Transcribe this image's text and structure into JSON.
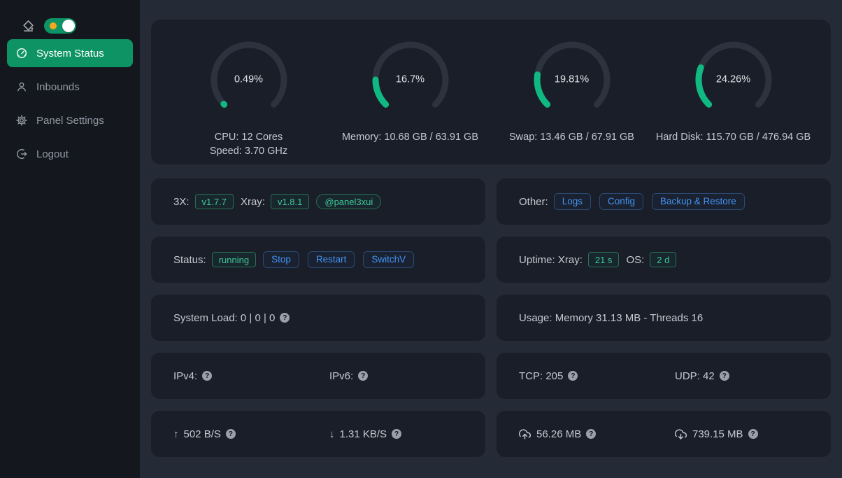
{
  "colors": {
    "page_bg": "#252a37",
    "card_bg": "#191e28",
    "sidebar_bg": "#14171e",
    "accent_green": "#10b981",
    "accent_green_strong": "#0e9464",
    "accent_blue": "#4493f2",
    "gauge_track": "#2c323e",
    "tag_green_text": "#3fc89a",
    "tag_green_border": "#2a6e54",
    "btn_blue_border": "#2a4a73",
    "sun_color": "#f6a821"
  },
  "icons": {
    "help": "?",
    "arrow_up": "↑",
    "arrow_down": "↓"
  },
  "sidebar": {
    "theme_toggle_on": true,
    "items": [
      {
        "label": "System Status",
        "icon": "dashboard-icon",
        "active": true
      },
      {
        "label": "Inbounds",
        "icon": "user-icon",
        "active": false
      },
      {
        "label": "Panel Settings",
        "icon": "gear-icon",
        "active": false
      },
      {
        "label": "Logout",
        "icon": "logout-icon",
        "active": false
      }
    ]
  },
  "chart_data": {
    "type": "gauge-set",
    "unit": "%",
    "gauges": [
      {
        "name": "CPU",
        "percent": 0.49
      },
      {
        "name": "Memory",
        "percent": 16.7
      },
      {
        "name": "Swap",
        "percent": 19.81
      },
      {
        "name": "Hard Disk",
        "percent": 24.26
      }
    ]
  },
  "gauges": [
    {
      "percent": 0.49,
      "display": "0.49%",
      "lines": [
        "CPU: 12 Cores",
        "Speed: 3.70 GHz"
      ]
    },
    {
      "percent": 16.7,
      "display": "16.7%",
      "lines": [
        "Memory: 10.68 GB / 63.91 GB"
      ]
    },
    {
      "percent": 19.81,
      "display": "19.81%",
      "lines": [
        "Swap: 13.46 GB / 67.91 GB"
      ]
    },
    {
      "percent": 24.26,
      "display": "24.26%",
      "lines": [
        "Hard Disk: 115.70 GB / 476.94 GB"
      ]
    }
  ],
  "version_row": {
    "label_3x": "3X:",
    "tag_3x": "v1.7.7",
    "label_xray": "Xray:",
    "tag_xray": "v1.8.1",
    "telegram_tag": "@panel3xui"
  },
  "other_row": {
    "label": "Other:",
    "buttons": [
      "Logs",
      "Config",
      "Backup & Restore"
    ]
  },
  "status_row": {
    "label": "Status:",
    "state": "running",
    "buttons": [
      "Stop",
      "Restart",
      "SwitchV"
    ]
  },
  "uptime_row": {
    "label": "Uptime: Xray:",
    "xray_uptime": "21 s",
    "os_label": "OS:",
    "os_uptime": "2 d"
  },
  "load_row": {
    "text": "System Load: 0 | 0 | 0"
  },
  "usage_row": {
    "text": "Usage: Memory 31.13 MB - Threads 16"
  },
  "ip_row": {
    "ipv4_label": "IPv4:",
    "ipv6_label": "IPv6:"
  },
  "conn_row": {
    "tcp": "TCP: 205",
    "udp": "UDP: 42"
  },
  "speed_row": {
    "up": "502 B/S",
    "down": "1.31 KB/S"
  },
  "traffic_row": {
    "sent": "56.26 MB",
    "received": "739.15 MB"
  }
}
